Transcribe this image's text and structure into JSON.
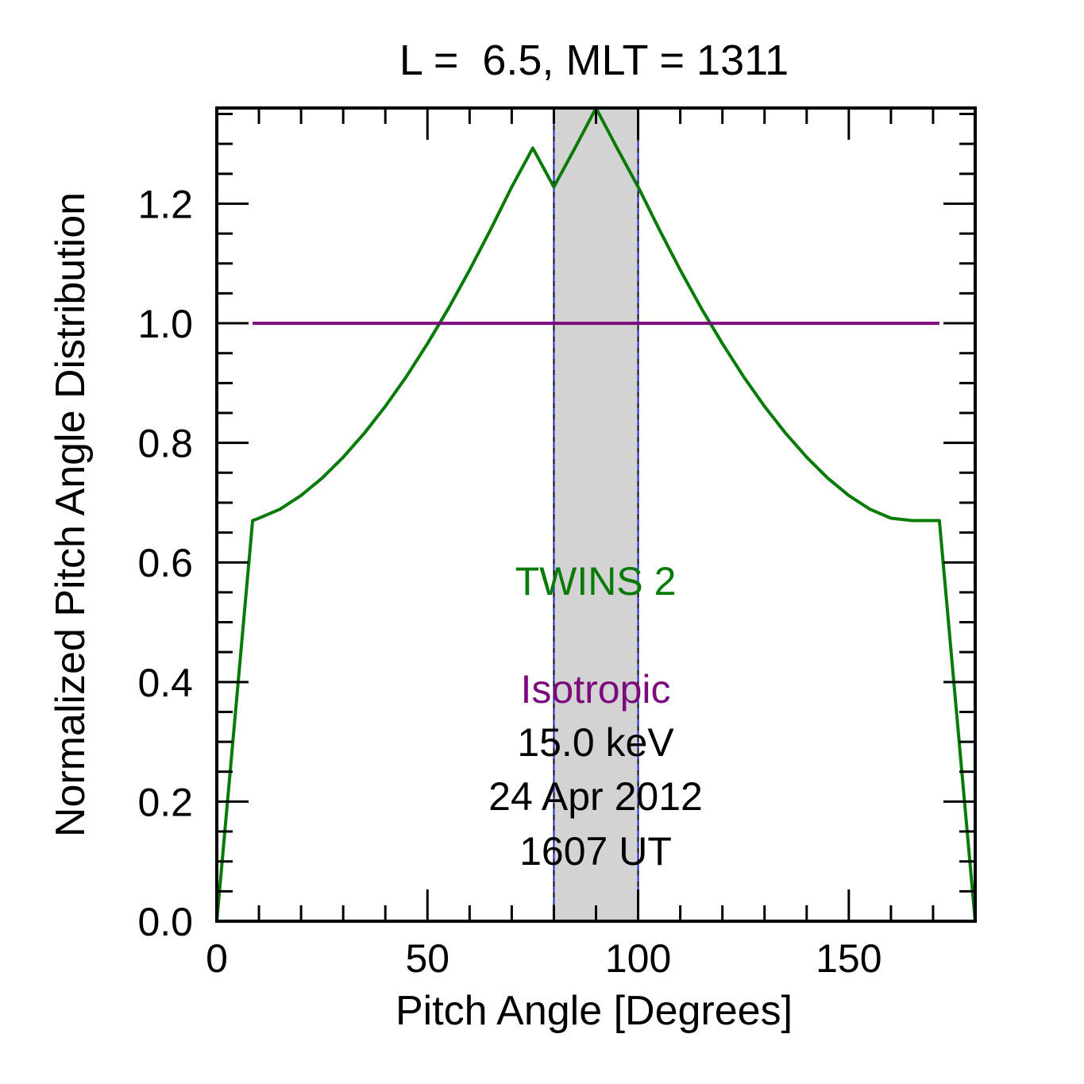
{
  "chart_data": {
    "type": "line",
    "title": "L =  6.5, MLT = 1311",
    "xlabel": "Pitch Angle [Degrees]",
    "ylabel": "Normalized Pitch Angle Distribution",
    "xlim": [
      0,
      180
    ],
    "ylim": [
      0,
      1.36
    ],
    "xticks": [
      0,
      50,
      100,
      150
    ],
    "xtick_labels": [
      "0",
      "50",
      "100",
      "150"
    ],
    "yticks": [
      0,
      0.2,
      0.4,
      0.6,
      0.8,
      1.0,
      1.2
    ],
    "ytick_labels": [
      "0.0",
      "0.2",
      "0.4",
      "0.6",
      "0.8",
      "1.0",
      "1.2"
    ],
    "grid": false,
    "shaded_band": {
      "x": [
        80,
        100
      ],
      "color": "#d3d3d3"
    },
    "series": [
      {
        "name": "TWINS 2",
        "color": "#087a08",
        "x": [
          0,
          8.5,
          10,
          15,
          20,
          25,
          30,
          35,
          40,
          45,
          50,
          55,
          60,
          65,
          70,
          75,
          80,
          85,
          90,
          95,
          100,
          105,
          110,
          115,
          120,
          125,
          130,
          135,
          140,
          145,
          150,
          155,
          160,
          165,
          170,
          171.5,
          180
        ],
        "y": [
          0,
          0.67,
          0.674,
          0.689,
          0.712,
          0.741,
          0.776,
          0.816,
          0.861,
          0.911,
          0.966,
          1.025,
          1.089,
          1.157,
          1.228,
          1.293,
          1.228,
          1.293,
          1.36,
          1.293,
          1.228,
          1.157,
          1.089,
          1.025,
          0.966,
          0.911,
          0.861,
          0.816,
          0.776,
          0.741,
          0.712,
          0.689,
          0.674,
          0.67,
          0.67,
          0.67,
          0
        ]
      },
      {
        "name": "Isotropic",
        "color": "#7d0a7d",
        "x": [
          8.5,
          171.5
        ],
        "y": [
          1.0,
          1.0
        ]
      }
    ],
    "annotations": {
      "series1": "TWINS 2",
      "series2": "Isotropic",
      "energy": "15.0 keV",
      "date": "24 Apr 2012",
      "time": "1607 UT"
    }
  }
}
